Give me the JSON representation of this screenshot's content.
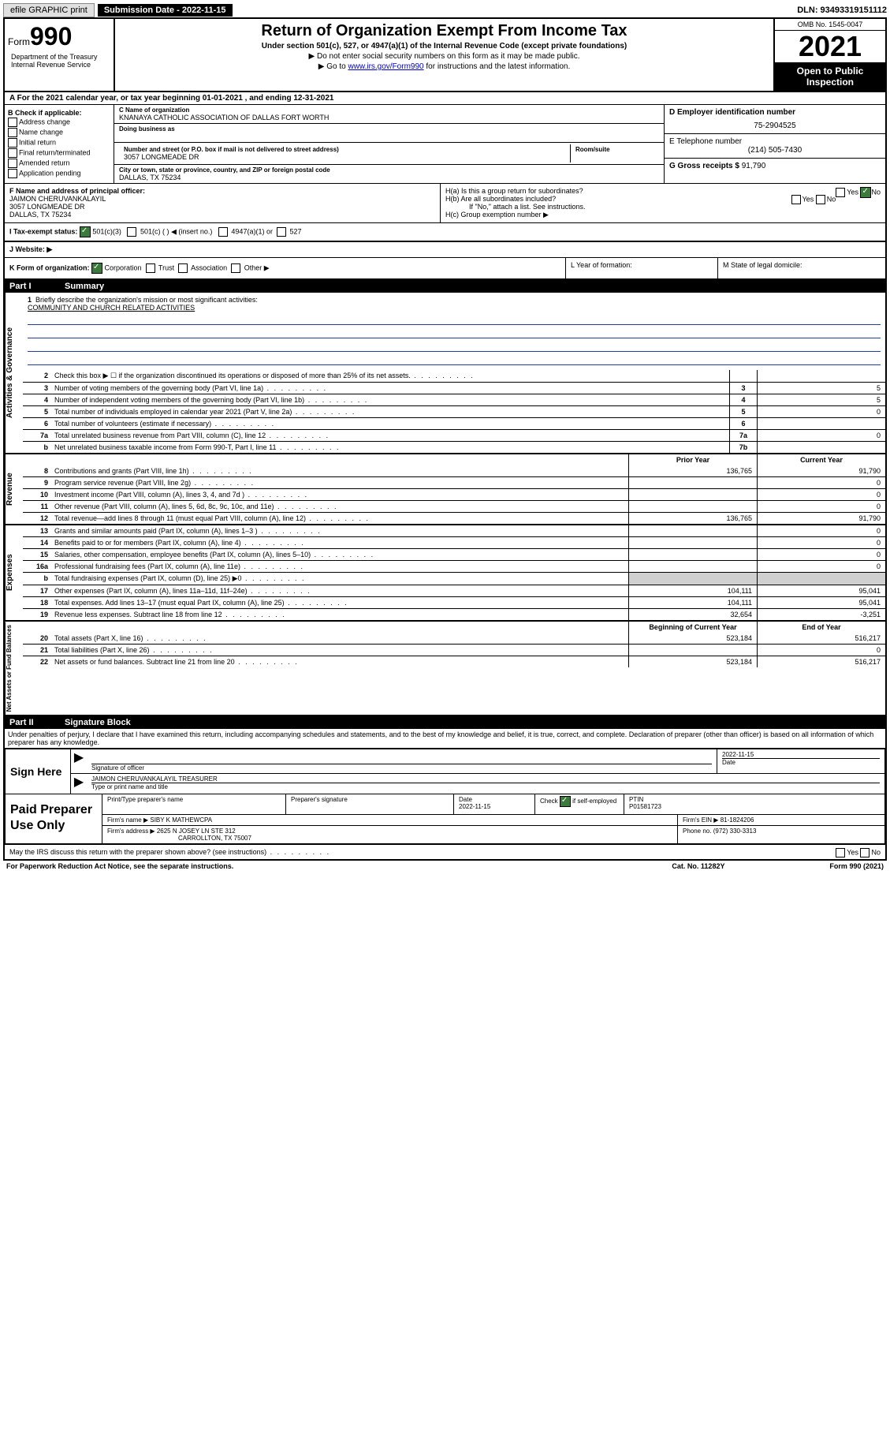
{
  "topbar": {
    "efile": "efile GRAPHIC print",
    "submission_label": "Submission Date - 2022-11-15",
    "dln": "DLN: 93493319151112"
  },
  "header": {
    "form_word": "Form",
    "form_num": "990",
    "title": "Return of Organization Exempt From Income Tax",
    "sub1": "Under section 501(c), 527, or 4947(a)(1) of the Internal Revenue Code (except private foundations)",
    "sub2": "▶ Do not enter social security numbers on this form as it may be made public.",
    "sub3_pre": "▶ Go to ",
    "sub3_link": "www.irs.gov/Form990",
    "sub3_post": " for instructions and the latest information.",
    "omb": "OMB No. 1545-0047",
    "year": "2021",
    "open": "Open to Public Inspection",
    "dept": "Department of the Treasury Internal Revenue Service"
  },
  "rowA": "For the 2021 calendar year, or tax year beginning 01-01-2021   , and ending 12-31-2021",
  "colB": {
    "hdr": "B Check if applicable:",
    "items": [
      "Address change",
      "Name change",
      "Initial return",
      "Final return/terminated",
      "Amended return",
      "Application pending"
    ]
  },
  "colC": {
    "name_lbl": "C Name of organization",
    "name": "KNANAYA CATHOLIC ASSOCIATION OF DALLAS FORT WORTH",
    "dba_lbl": "Doing business as",
    "addr_lbl": "Number and street (or P.O. box if mail is not delivered to street address)",
    "room_lbl": "Room/suite",
    "addr": "3057 LONGMEADE DR",
    "city_lbl": "City or town, state or province, country, and ZIP or foreign postal code",
    "city": "DALLAS, TX  75234"
  },
  "colD": {
    "ein_lbl": "D Employer identification number",
    "ein": "75-2904525",
    "tel_lbl": "E Telephone number",
    "tel": "(214) 505-7430",
    "gross_lbl": "G Gross receipts $ ",
    "gross": "91,790"
  },
  "rowF": {
    "lbl": "F Name and address of principal officer:",
    "name": "JAIMON CHERUVANKALAYIL",
    "addr1": "3057 LONGMEADE DR",
    "addr2": "DALLAS, TX  75234"
  },
  "rowH": {
    "ha": "H(a)  Is this a group return for subordinates?",
    "hb": "H(b)  Are all subordinates included?",
    "hb_note": "If \"No,\" attach a list. See instructions.",
    "hc": "H(c)  Group exemption number ▶",
    "yes": "Yes",
    "no": "No"
  },
  "rowI": {
    "lbl": "I   Tax-exempt status:",
    "c3": "501(c)(3)",
    "c": "501(c) (  ) ◀ (insert no.)",
    "a1": "4947(a)(1) or",
    "s527": "527"
  },
  "rowJ": "J   Website: ▶",
  "rowK": {
    "lbl": "K Form of organization:",
    "corp": "Corporation",
    "trust": "Trust",
    "assoc": "Association",
    "other": "Other ▶"
  },
  "rowL": "L Year of formation:",
  "rowM": "M State of legal domicile:",
  "part1": {
    "num": "Part I",
    "title": "Summary"
  },
  "mission": {
    "num": "1",
    "lbl": "Briefly describe the organization's mission or most significant activities:",
    "text": "COMMUNITY AND CHURCH RELATED ACTIVITIES"
  },
  "vtabs": {
    "gov": "Activities & Governance",
    "rev": "Revenue",
    "exp": "Expenses",
    "net": "Net Assets or Fund Balances"
  },
  "lines_gov": [
    {
      "n": "2",
      "d": "Check this box ▶ ☐  if the organization discontinued its operations or disposed of more than 25% of its net assets.",
      "b": "",
      "v": ""
    },
    {
      "n": "3",
      "d": "Number of voting members of the governing body (Part VI, line 1a)",
      "b": "3",
      "v": "5"
    },
    {
      "n": "4",
      "d": "Number of independent voting members of the governing body (Part VI, line 1b)",
      "b": "4",
      "v": "5"
    },
    {
      "n": "5",
      "d": "Total number of individuals employed in calendar year 2021 (Part V, line 2a)",
      "b": "5",
      "v": "0"
    },
    {
      "n": "6",
      "d": "Total number of volunteers (estimate if necessary)",
      "b": "6",
      "v": ""
    },
    {
      "n": "7a",
      "d": "Total unrelated business revenue from Part VIII, column (C), line 12",
      "b": "7a",
      "v": "0"
    },
    {
      "n": "b",
      "d": "Net unrelated business taxable income from Form 990-T, Part I, line 11",
      "b": "7b",
      "v": ""
    }
  ],
  "col_hdrs": {
    "prior": "Prior Year",
    "current": "Current Year",
    "boy": "Beginning of Current Year",
    "eoy": "End of Year"
  },
  "lines_rev": [
    {
      "n": "8",
      "d": "Contributions and grants (Part VIII, line 1h)",
      "p": "136,765",
      "c": "91,790"
    },
    {
      "n": "9",
      "d": "Program service revenue (Part VIII, line 2g)",
      "p": "",
      "c": "0"
    },
    {
      "n": "10",
      "d": "Investment income (Part VIII, column (A), lines 3, 4, and 7d )",
      "p": "",
      "c": "0"
    },
    {
      "n": "11",
      "d": "Other revenue (Part VIII, column (A), lines 5, 6d, 8c, 9c, 10c, and 11e)",
      "p": "",
      "c": "0"
    },
    {
      "n": "12",
      "d": "Total revenue—add lines 8 through 11 (must equal Part VIII, column (A), line 12)",
      "p": "136,765",
      "c": "91,790"
    }
  ],
  "lines_exp": [
    {
      "n": "13",
      "d": "Grants and similar amounts paid (Part IX, column (A), lines 1–3 )",
      "p": "",
      "c": "0"
    },
    {
      "n": "14",
      "d": "Benefits paid to or for members (Part IX, column (A), line 4)",
      "p": "",
      "c": "0"
    },
    {
      "n": "15",
      "d": "Salaries, other compensation, employee benefits (Part IX, column (A), lines 5–10)",
      "p": "",
      "c": "0"
    },
    {
      "n": "16a",
      "d": "Professional fundraising fees (Part IX, column (A), line 11e)",
      "p": "",
      "c": "0"
    },
    {
      "n": "b",
      "d": "Total fundraising expenses (Part IX, column (D), line 25) ▶0",
      "p": "GREY",
      "c": "GREY"
    },
    {
      "n": "17",
      "d": "Other expenses (Part IX, column (A), lines 11a–11d, 11f–24e)",
      "p": "104,111",
      "c": "95,041"
    },
    {
      "n": "18",
      "d": "Total expenses. Add lines 13–17 (must equal Part IX, column (A), line 25)",
      "p": "104,111",
      "c": "95,041"
    },
    {
      "n": "19",
      "d": "Revenue less expenses. Subtract line 18 from line 12",
      "p": "32,654",
      "c": "-3,251"
    }
  ],
  "lines_net": [
    {
      "n": "20",
      "d": "Total assets (Part X, line 16)",
      "p": "523,184",
      "c": "516,217"
    },
    {
      "n": "21",
      "d": "Total liabilities (Part X, line 26)",
      "p": "",
      "c": "0"
    },
    {
      "n": "22",
      "d": "Net assets or fund balances. Subtract line 21 from line 20",
      "p": "523,184",
      "c": "516,217"
    }
  ],
  "part2": {
    "num": "Part II",
    "title": "Signature Block"
  },
  "penalties": "Under penalties of perjury, I declare that I have examined this return, including accompanying schedules and statements, and to the best of my knowledge and belief, it is true, correct, and complete. Declaration of preparer (other than officer) is based on all information of which preparer has any knowledge.",
  "sign": {
    "here": "Sign Here",
    "sig_lbl": "Signature of officer",
    "date_lbl": "Date",
    "date": "2022-11-15",
    "name": "JAIMON CHERUVANKALAYIL TREASURER",
    "name_lbl": "Type or print name and title"
  },
  "paid": {
    "hdr": "Paid Preparer Use Only",
    "r1": {
      "c1": "Print/Type preparer's name",
      "c2": "Preparer's signature",
      "c3_lbl": "Date",
      "c3": "2022-11-15",
      "c4_lbl": "Check",
      "c4_sub": "if self-employed",
      "c5_lbl": "PTIN",
      "c5": "P01581723"
    },
    "r2": {
      "lbl": "Firm's name    ▶",
      "val": "SIBY K MATHEWCPA",
      "ein_lbl": "Firm's EIN ▶",
      "ein": "81-1824206"
    },
    "r3": {
      "lbl": "Firm's address ▶",
      "val1": "2625 N JOSEY LN STE 312",
      "val2": "CARROLLTON, TX  75007",
      "ph_lbl": "Phone no.",
      "ph": "(972) 330-3313"
    }
  },
  "may": "May the IRS discuss this return with the preparer shown above? (see instructions)",
  "footer": {
    "l": "For Paperwork Reduction Act Notice, see the separate instructions.",
    "m": "Cat. No. 11282Y",
    "r": "Form 990 (2021)"
  }
}
